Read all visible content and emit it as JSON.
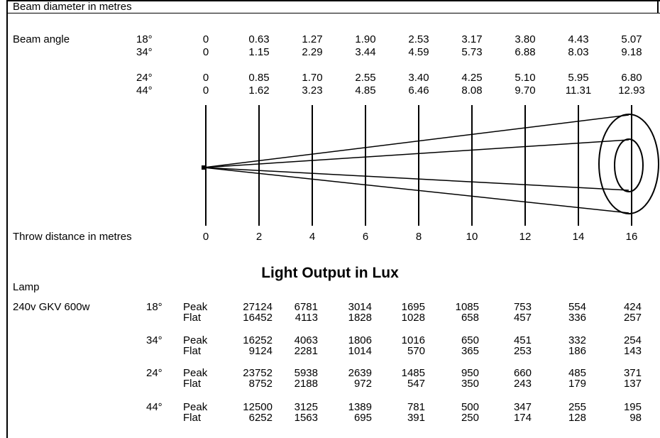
{
  "beam_section": {
    "title": "Beam diameter in metres",
    "beam_angle_label": "Beam angle",
    "rows": [
      {
        "angle": "18°",
        "values": [
          "0",
          "0.63",
          "1.27",
          "1.90",
          "2.53",
          "3.17",
          "3.80",
          "4.43",
          "5.07"
        ]
      },
      {
        "angle": "34°",
        "values": [
          "0",
          "1.15",
          "2.29",
          "3.44",
          "4.59",
          "5.73",
          "6.88",
          "8.03",
          "9.18"
        ]
      },
      {
        "angle": "24°",
        "values": [
          "0",
          "0.85",
          "1.70",
          "2.55",
          "3.40",
          "4.25",
          "5.10",
          "5.95",
          "6.80"
        ]
      },
      {
        "angle": "44°",
        "values": [
          "0",
          "1.62",
          "3.23",
          "4.85",
          "6.46",
          "8.08",
          "9.70",
          "11.31",
          "12.93"
        ]
      }
    ],
    "throw_label": "Throw distance in metres",
    "throw_distances": [
      "0",
      "2",
      "4",
      "6",
      "8",
      "10",
      "12",
      "14",
      "16"
    ]
  },
  "lux_section": {
    "title": "Light Output in Lux",
    "lamp_header": "Lamp",
    "lamp_name": "240v GKV 600w",
    "groups": [
      {
        "angle": "18°",
        "rows": [
          {
            "type": "Peak",
            "values": [
              "27124",
              "6781",
              "3014",
              "1695",
              "1085",
              "753",
              "554",
              "424"
            ]
          },
          {
            "type": "Flat",
            "values": [
              "16452",
              "4113",
              "1828",
              "1028",
              "658",
              "457",
              "336",
              "257"
            ]
          }
        ]
      },
      {
        "angle": "34°",
        "rows": [
          {
            "type": "Peak",
            "values": [
              "16252",
              "4063",
              "1806",
              "1016",
              "650",
              "451",
              "332",
              "254"
            ]
          },
          {
            "type": "Flat",
            "values": [
              "9124",
              "2281",
              "1014",
              "570",
              "365",
              "253",
              "186",
              "143"
            ]
          }
        ]
      },
      {
        "angle": "24°",
        "rows": [
          {
            "type": "Peak",
            "values": [
              "23752",
              "5938",
              "2639",
              "1485",
              "950",
              "660",
              "485",
              "371"
            ]
          },
          {
            "type": "Flat",
            "values": [
              "8752",
              "2188",
              "972",
              "547",
              "350",
              "243",
              "179",
              "137"
            ]
          }
        ]
      },
      {
        "angle": "44°",
        "rows": [
          {
            "type": "Peak",
            "values": [
              "12500",
              "3125",
              "1389",
              "781",
              "500",
              "347",
              "255",
              "195"
            ]
          },
          {
            "type": "Flat",
            "values": [
              "6252",
              "1563",
              "695",
              "391",
              "250",
              "174",
              "128",
              "98"
            ]
          }
        ]
      }
    ]
  }
}
